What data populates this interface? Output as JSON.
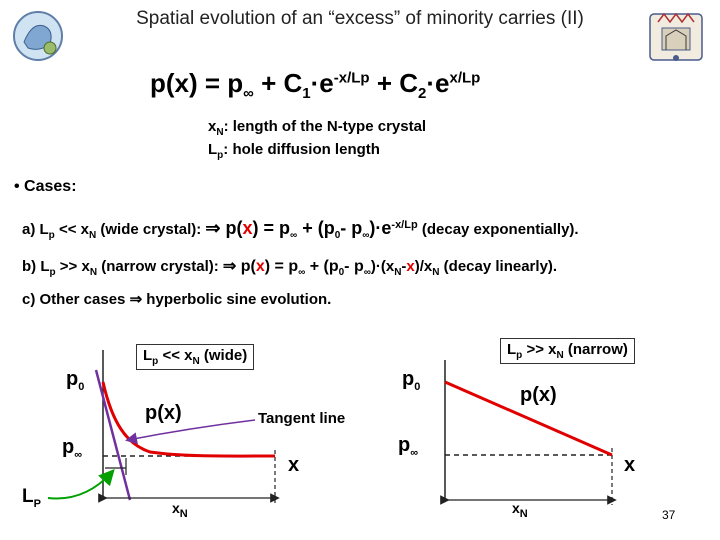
{
  "slide": {
    "title": "Spatial evolution of an “excess” of minority carries (II)",
    "page_number": "37"
  },
  "main_equation": {
    "lhs": "p(x) = p",
    "inf": "∞",
    "plus1": " + C",
    "c1_sub": "1",
    "dot_e1": "·e",
    "exp1": "-x/Lp",
    "plus2": " + C",
    "c2_sub": "2",
    "dot_e2": "·e",
    "exp2": "x/Lp"
  },
  "definitions": {
    "xn_sym": "x",
    "xn_sub": "N",
    "xn_text": ": length of the N-type crystal",
    "lp_sym": "L",
    "lp_sub": "p",
    "lp_text": ": hole diffusion length"
  },
  "cases": {
    "heading": "• Cases:",
    "a_label": "a) L",
    "a_sub1": "p",
    "a_mid": " << x",
    "a_sub2": "N",
    "a_cond": " (wide crystal): ",
    "a_arrow": "⇒",
    "a_f1": " p(",
    "a_x": "x",
    "a_f2": ") = p",
    "a_inf": "∞",
    "a_f3": " + (p",
    "a_sub0": "0",
    "a_f4": "- p",
    "a_inf2": "∞",
    "a_f5": ")·e",
    "a_exp": "-x/Lp",
    "a_note": "  (decay exponentially).",
    "b_label": "b) L",
    "b_sub1": "p",
    "b_mid": " >> x",
    "b_sub2": "N",
    "b_cond": " (narrow crystal): ",
    "b_arrow": "⇒",
    "b_f1": " p(",
    "b_x": "x",
    "b_f2": ") = p",
    "b_inf": "∞",
    "b_f3": " + (p",
    "b_sub0": "0",
    "b_f4": "- p",
    "b_inf2": "∞",
    "b_f5": ")·(x",
    "b_subN": "N",
    "b_f6": "-",
    "b_x2": "x",
    "b_f7": ")/x",
    "b_subN2": "N",
    "b_note": "  (decay linearly).",
    "c_label": "c) Other cases ",
    "c_arrow": "⇒",
    "c_text": " hyperbolic sine evolution."
  },
  "left_plot": {
    "box_l": "L",
    "box_lsub": "p",
    "box_mid": " << x",
    "box_nsub": "N",
    "box_tail": " (wide)",
    "p0": "p",
    "p0_sub": "0",
    "pinf": "p",
    "pinf_sym": "∞",
    "px": "p(x)",
    "tangent": "Tangent line",
    "x": "x",
    "xn": "x",
    "xn_sub": "N",
    "lp": "L",
    "lp_sub": "P",
    "colors": {
      "curve": "#e00000",
      "tangent": "#7030a0",
      "lp_arrow": "#00a000"
    }
  },
  "right_plot": {
    "box_l": "L",
    "box_lsub": "p",
    "box_mid": " >> x",
    "box_nsub": "N",
    "box_tail": " (narrow)",
    "p0": "p",
    "p0_sub": "0",
    "pinf": "p",
    "pinf_sym": "∞",
    "px": "p(x)",
    "x": "x",
    "xn": "x",
    "xn_sub": "N",
    "colors": {
      "line": "#e00000"
    }
  }
}
